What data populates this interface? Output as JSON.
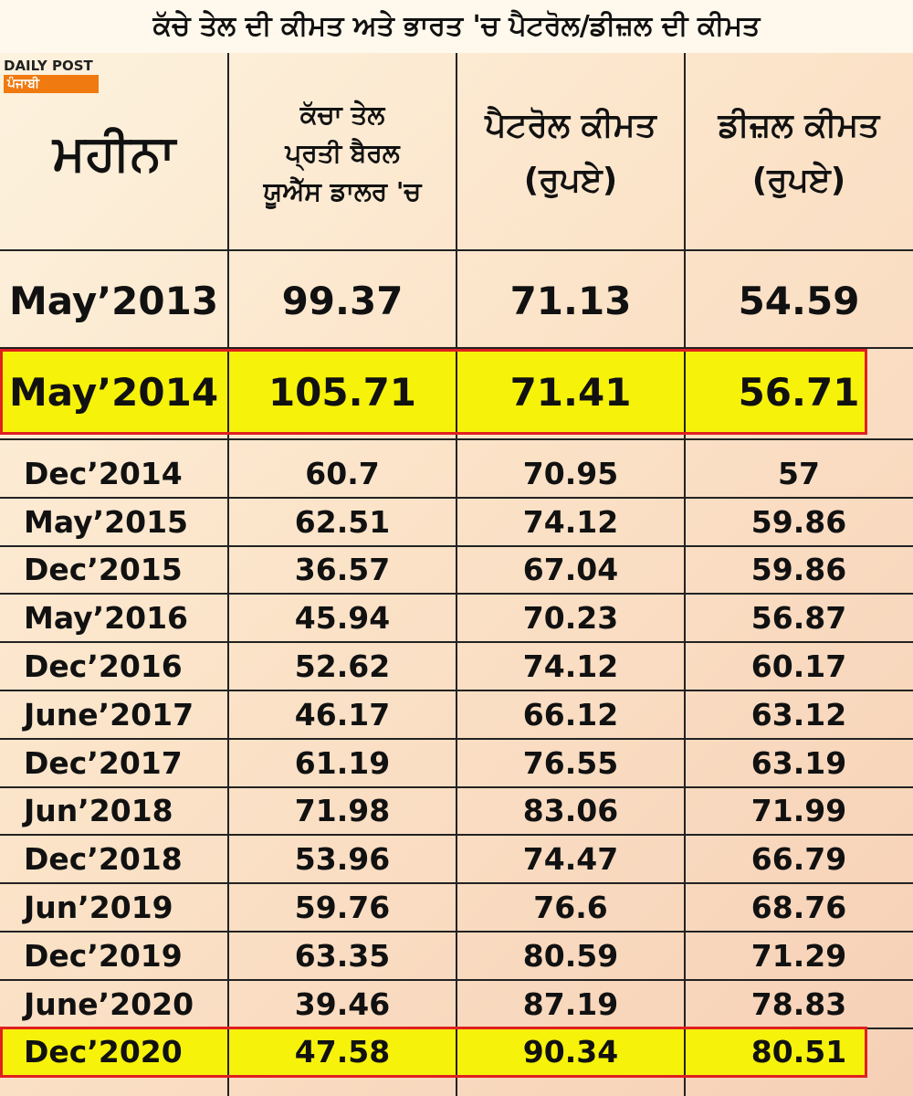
{
  "title": "ਕੱਚੇ ਤੇਲ ਦੀ ਕੀਮਤ ਅਤੇ ਭਾਰਤ 'ਚ ਪੈਟਰੋਲ/ਡੀਜ਼ਲ ਦੀ ਕੀਮਤ",
  "logo": {
    "brand": "DAILY POST",
    "sub": "ਪੰਜਾਬੀ"
  },
  "table": {
    "header": [
      [
        "ਮਹੀਨਾ"
      ],
      [
        "ਕੱਚਾ ਤੇਲ",
        "ਪ੍ਰਤੀ ਬੈਰਲ",
        "ਯੂਐੱਸ ਡਾਲਰ 'ਚ"
      ],
      [
        "ਪੈਟਰੋਲ ਕੀਮਤ",
        "(ਰੁਪਏ)"
      ],
      [
        "ਡੀਜ਼ਲ ਕੀਮਤ",
        "(ਰੁਪਏ)"
      ]
    ],
    "rows": [
      [
        "May’2013",
        "99.37",
        "71.13",
        "54.59"
      ],
      [
        "May’2014",
        "105.71",
        "71.41",
        "56.71"
      ],
      [
        "Dec’2014",
        "60.7",
        "70.95",
        "57"
      ],
      [
        "May’2015",
        "62.51",
        "74.12",
        "59.86"
      ],
      [
        "Dec’2015",
        "36.57",
        "67.04",
        "59.86"
      ],
      [
        "May’2016",
        "45.94",
        "70.23",
        "56.87"
      ],
      [
        "Dec’2016",
        "52.62",
        "74.12",
        "60.17"
      ],
      [
        "June’2017",
        "46.17",
        "66.12",
        "63.12"
      ],
      [
        "Dec’2017",
        "61.19",
        "76.55",
        "63.19"
      ],
      [
        "Jun’2018",
        "71.98",
        "83.06",
        "71.99"
      ],
      [
        "Dec’2018",
        "53.96",
        "74.47",
        "66.79"
      ],
      [
        "Jun’2019",
        "59.76",
        "76.6",
        "68.76"
      ],
      [
        "Dec’2019",
        "63.35",
        "80.59",
        "71.29"
      ],
      [
        "June’2020",
        "39.46",
        "87.19",
        "78.83"
      ],
      [
        "Dec’2020",
        "47.58",
        "90.34",
        "80.51"
      ]
    ],
    "highlighted_rows": [
      1,
      14
    ]
  }
}
